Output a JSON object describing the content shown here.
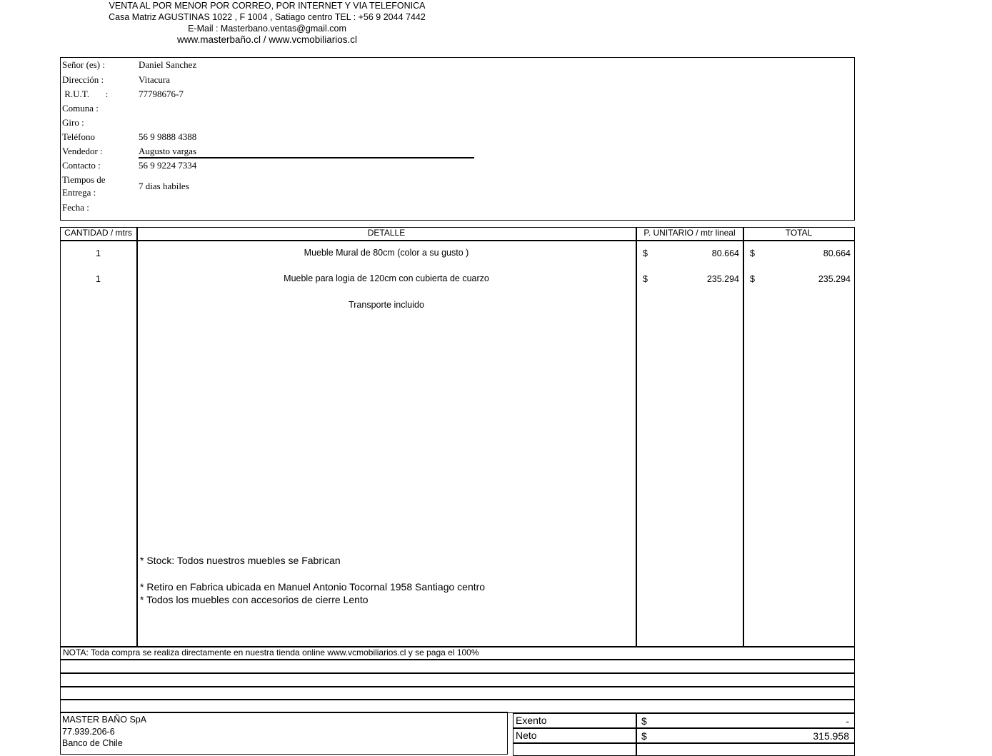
{
  "header": {
    "line1": "VENTA AL POR MENOR POR CORREO, POR INTERNET Y VIA TELEFONICA",
    "line2": "Casa Matriz AGUSTINAS 1022  ,  F 1004 , Satiago centro TEL : +56 9 2044 7442",
    "line3": "E-Mail :  Masterbano.ventas@gmail.com",
    "line4": "www.masterbaño.cl / www.vcmobiliarios.cl"
  },
  "client": [
    {
      "label": "Señor (es)   :",
      "value": "Daniel Sanchez"
    },
    {
      "label": "Dirección    :",
      "value": "Vitacura"
    },
    {
      "label": " R.U.T.       :",
      "value": "77798676-7"
    },
    {
      "label": "Comuna      :",
      "value": ""
    },
    {
      "label": "Giro           :",
      "value": ""
    },
    {
      "label": "Teléfono",
      "value": "56 9 9888 4388"
    },
    {
      "label": "Vendedor    :",
      "value": "Augusto vargas"
    },
    {
      "label": "Contacto     :",
      "value": "56 9 9224 7334"
    },
    {
      "label": "Tiempos de",
      "label2": "Entrega      :",
      "value": "7 dias habiles"
    },
    {
      "label": "Fecha     :",
      "value": ""
    }
  ],
  "table": {
    "headers": [
      "CANTIDAD / mtrs",
      "DETALLE",
      "P. UNITARIO  / mtr lineal",
      "TOTAL"
    ],
    "rows": [
      {
        "qty": "1",
        "detail": "Mueble Mural de 80cm (color a su gusto )",
        "cur1": "$",
        "unit": "80.664",
        "cur2": "$",
        "total": "80.664"
      },
      {
        "qty": "1",
        "detail": "Mueble para logia de 120cm  con cubierta de cuarzo",
        "cur1": "$",
        "unit": "235.294",
        "cur2": "$",
        "total": "235.294"
      },
      {
        "qty": "",
        "detail": "Transporte incluido",
        "cur1": "",
        "unit": "",
        "cur2": "",
        "total": ""
      }
    ],
    "notes": [
      "* Stock: Todos nuestros muebles se Fabrican",
      "* Retiro en Fabrica ubicada en Manuel Antonio Tocornal 1958 Santiago centro",
      "* Todos los muebles con accesorios de cierre Lento"
    ]
  },
  "nota": "NOTA: Toda compra se realiza directamente en nuestra tienda online www.vcmobiliarios.cl  y se paga el 100%",
  "company": {
    "name": "MASTER BAÑO SpA",
    "rut": "77.939.206-6",
    "bank": "Banco de Chile"
  },
  "totals": [
    {
      "label": "Exento",
      "cur": "$",
      "value": "-"
    },
    {
      "label": "Neto",
      "cur": "$",
      "value": "315.958"
    }
  ]
}
